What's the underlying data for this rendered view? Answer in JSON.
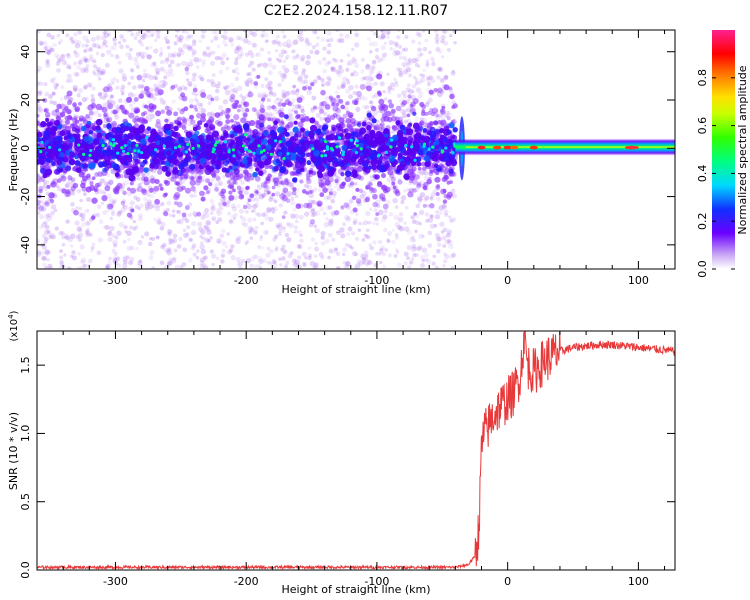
{
  "title": "C2E2.2024.158.12.11.R07",
  "chart_data": [
    {
      "type": "heatmap",
      "name": "spectrogram",
      "xlabel": "Height of straight line (km)",
      "ylabel": "Frequency (Hz)",
      "xlim": [
        -360,
        128
      ],
      "ylim": [
        -50,
        49
      ],
      "xticks": [
        -300,
        -200,
        -100,
        0,
        100
      ],
      "xtick_labels": [
        "-300",
        "-200",
        "-100",
        "0",
        "100"
      ],
      "yticks": [
        -40,
        -20,
        0,
        20,
        40
      ],
      "ytick_labels": [
        "-40",
        "-20",
        "0",
        "20",
        "40"
      ],
      "description_regions": [
        {
          "x_range": [
            -360,
            -40
          ],
          "freq_center": 0,
          "core_halfwidth_hz": 6,
          "scatter_halfwidth_hz": 50,
          "amplitude": 0.15
        },
        {
          "x_range": [
            -40,
            128
          ],
          "freq_center": 0,
          "core_halfwidth_hz": 2,
          "amplitude": 0.55
        }
      ],
      "colorbar": {
        "label": "Normalized spectral amplitude",
        "range": [
          0,
          1
        ],
        "ticks": [
          0.0,
          0.2,
          0.4,
          0.6,
          0.8
        ],
        "tick_labels": [
          "0.0",
          "0.2",
          "0.4",
          "0.6",
          "0.8"
        ]
      }
    },
    {
      "type": "line",
      "name": "snr",
      "xlabel": "Height of straight line (km)",
      "ylabel": "SNR (10 * v/v)",
      "scale_label": "(x10",
      "scale_exp": "4",
      "scale_close": ")",
      "xlim": [
        -360,
        128
      ],
      "ylim": [
        0,
        1.75
      ],
      "xticks": [
        -300,
        -200,
        -100,
        0,
        100
      ],
      "xtick_labels": [
        "-300",
        "-200",
        "-100",
        "0",
        "100"
      ],
      "yticks": [
        0.0,
        0.5,
        1.0,
        1.5
      ],
      "ytick_labels": [
        "0.0",
        "0.5",
        "1.0",
        "1.5"
      ],
      "color": "#e8393a",
      "series": [
        {
          "name": "SNR",
          "x": [
            -360,
            -300,
            -200,
            -100,
            -40,
            -30,
            -25,
            -22,
            -20,
            -18,
            -15,
            -10,
            -5,
            0,
            5,
            10,
            13,
            15,
            20,
            30,
            40,
            50,
            60,
            70,
            80,
            90,
            100,
            110,
            120,
            128
          ],
          "y": [
            0.02,
            0.02,
            0.02,
            0.02,
            0.02,
            0.04,
            0.1,
            0.3,
            0.9,
            1.0,
            1.05,
            1.15,
            1.2,
            1.25,
            1.3,
            1.45,
            1.75,
            1.5,
            1.45,
            1.55,
            1.6,
            1.63,
            1.64,
            1.65,
            1.65,
            1.64,
            1.63,
            1.62,
            1.61,
            1.6
          ]
        }
      ]
    }
  ]
}
